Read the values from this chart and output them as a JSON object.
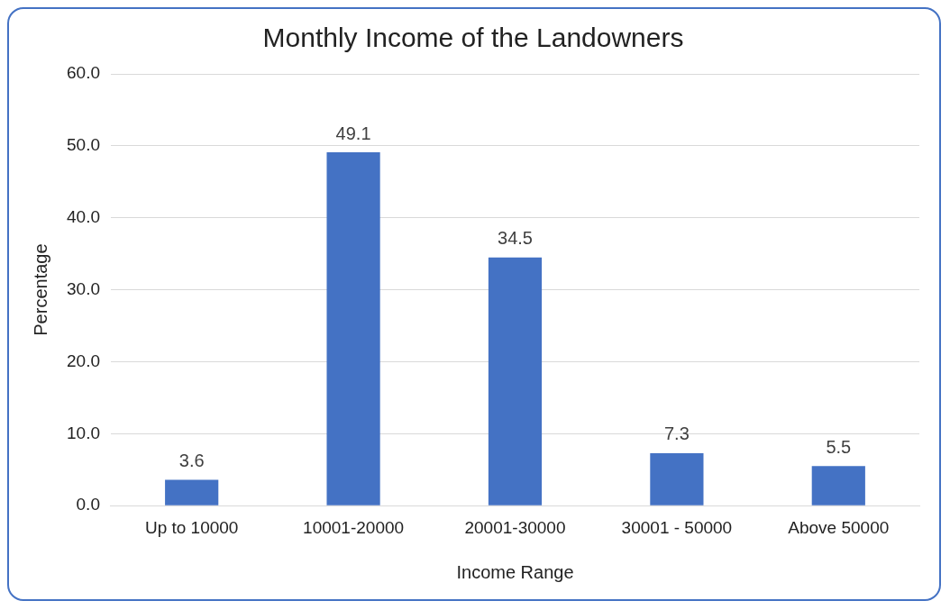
{
  "chart_data": {
    "type": "bar",
    "title": "Monthly Income of the Landowners",
    "xlabel": "Income Range",
    "ylabel": "Percentage",
    "categories": [
      "Up to 10000",
      "10001-20000",
      "20001-30000",
      "30001 - 50000",
      "Above 50000"
    ],
    "values": [
      3.6,
      49.1,
      34.5,
      7.3,
      5.5
    ],
    "color": "#4472c4",
    "ylim": [
      0,
      60
    ],
    "yticks": [
      {
        "value": 0,
        "label": "0.0"
      },
      {
        "value": 10,
        "label": "10.0"
      },
      {
        "value": 20,
        "label": "20.0"
      },
      {
        "value": 30,
        "label": "30.0"
      },
      {
        "value": 40,
        "label": "40.0"
      },
      {
        "value": 50,
        "label": "50.0"
      },
      {
        "value": 60,
        "label": "60.0"
      }
    ],
    "grid": "y",
    "data_labels": true,
    "legend": false
  }
}
